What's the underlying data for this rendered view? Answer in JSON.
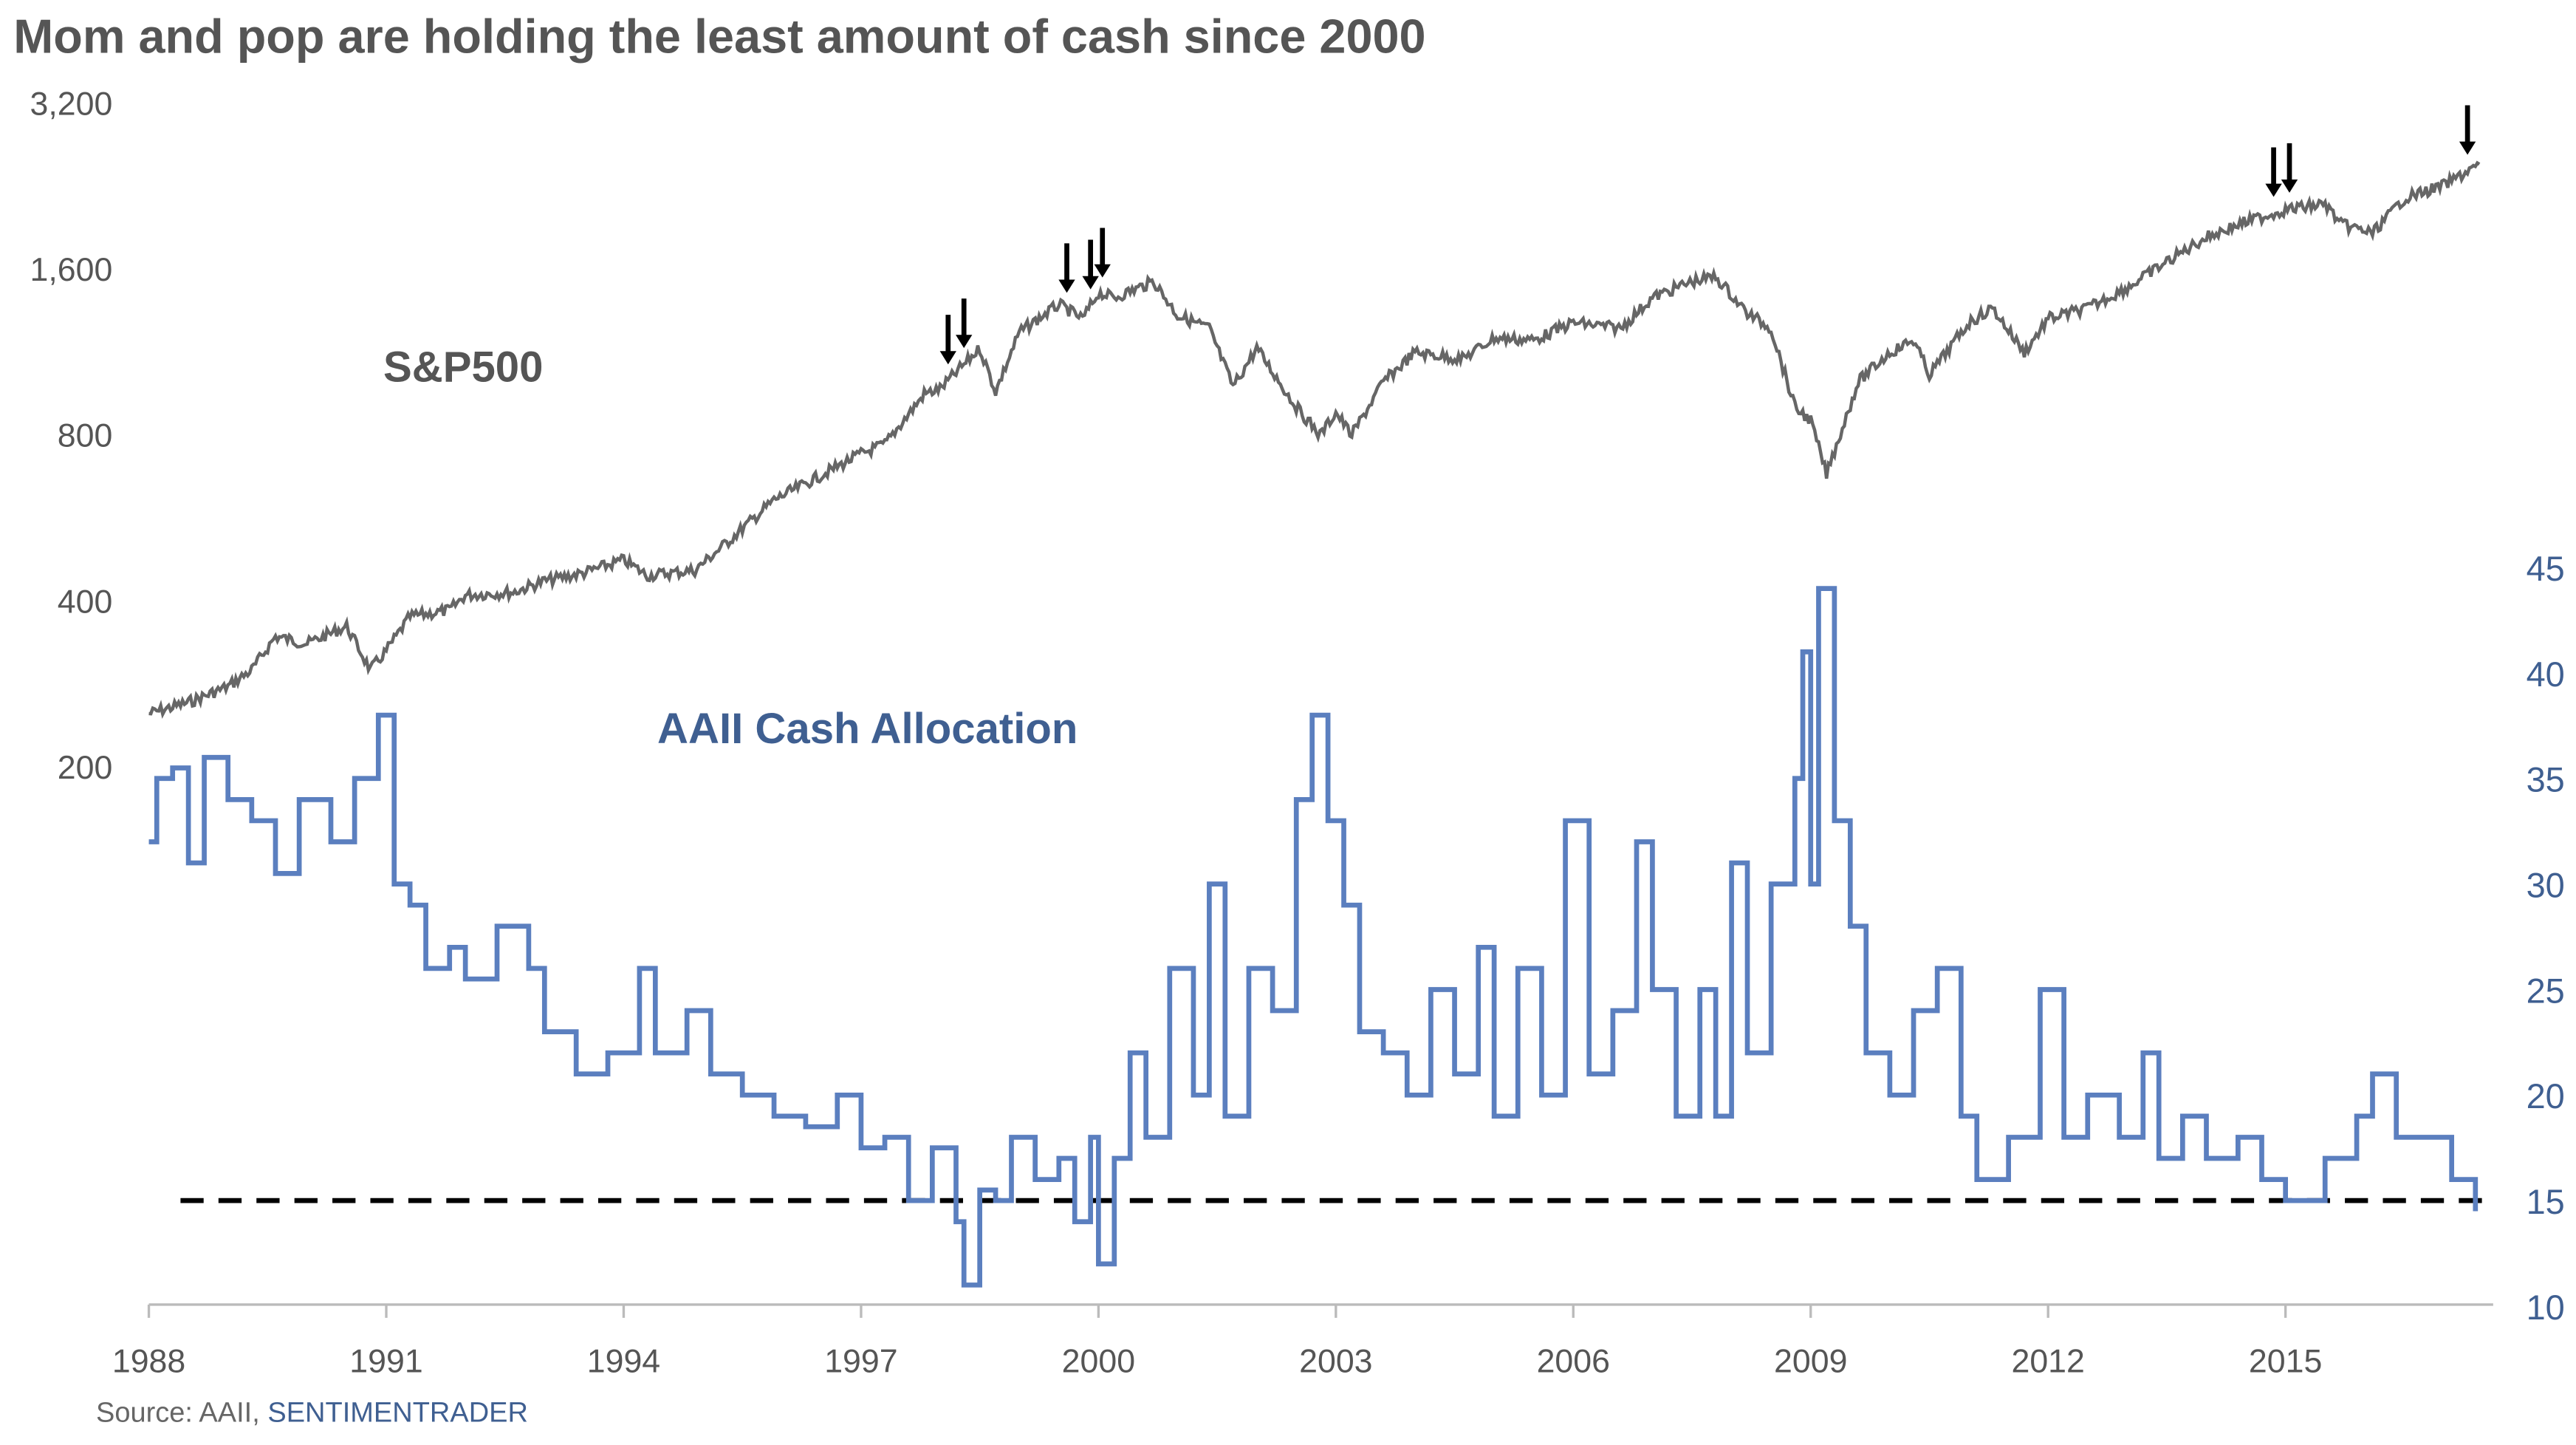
{
  "chart_data": {
    "type": "line",
    "title": "Mom and pop are holding the least amount of cash since 2000",
    "source_prefix": "Source: AAII, ",
    "source_brand": "SENTIMENTRADER",
    "x_range": [
      1988,
      2018
    ],
    "x_ticks": [
      "1988",
      "1991",
      "1994",
      "1997",
      "2000",
      "2003",
      "2006",
      "2009",
      "2012",
      "2015"
    ],
    "left_axis": {
      "scale": "log",
      "range": [
        200,
        3200
      ],
      "ticks": [
        {
          "v": 3200,
          "label": "3,200"
        },
        {
          "v": 1600,
          "label": "1,600"
        },
        {
          "v": 800,
          "label": "800"
        },
        {
          "v": 400,
          "label": "400"
        },
        {
          "v": 200,
          "label": "200"
        }
      ]
    },
    "right_axis": {
      "scale": "linear",
      "range": [
        10,
        45
      ],
      "ticks": [
        {
          "v": 45,
          "label": "45"
        },
        {
          "v": 40,
          "label": "40"
        },
        {
          "v": 35,
          "label": "35"
        },
        {
          "v": 30,
          "label": "30"
        },
        {
          "v": 25,
          "label": "25"
        },
        {
          "v": 20,
          "label": "20"
        },
        {
          "v": 15,
          "label": "15"
        },
        {
          "v": 10,
          "label": "10"
        }
      ]
    },
    "annotations": {
      "sp_label": "S&P500",
      "aaii_label": "AAII Cash Allocation"
    },
    "threshold": {
      "value": 15,
      "from": 1988.4
    },
    "arrow_years": [
      1998.1,
      1998.3,
      1999.6,
      1999.9,
      2000.05,
      2014.85,
      2015.05,
      2017.3
    ],
    "colors": {
      "sp": "#666666",
      "aaii": "#5b7fbf",
      "threshold": "#000000"
    },
    "series": [
      {
        "name": "S&P500",
        "axis": "left",
        "points": [
          [
            1988.0,
            250
          ],
          [
            1988.5,
            262
          ],
          [
            1989.0,
            280
          ],
          [
            1989.3,
            300
          ],
          [
            1989.6,
            345
          ],
          [
            1990.0,
            335
          ],
          [
            1990.5,
            360
          ],
          [
            1990.8,
            300
          ],
          [
            1991.0,
            325
          ],
          [
            1991.3,
            375
          ],
          [
            1991.8,
            385
          ],
          [
            1992.0,
            410
          ],
          [
            1992.6,
            415
          ],
          [
            1993.0,
            435
          ],
          [
            1993.5,
            450
          ],
          [
            1994.0,
            475
          ],
          [
            1994.3,
            445
          ],
          [
            1994.9,
            455
          ],
          [
            1995.3,
            510
          ],
          [
            1995.9,
            610
          ],
          [
            1996.4,
            665
          ],
          [
            1997.0,
            740
          ],
          [
            1997.3,
            770
          ],
          [
            1997.8,
            950
          ],
          [
            1998.0,
            970
          ],
          [
            1998.5,
            1150
          ],
          [
            1998.7,
            960
          ],
          [
            1999.0,
            1230
          ],
          [
            1999.5,
            1380
          ],
          [
            1999.8,
            1300
          ],
          [
            2000.0,
            1450
          ],
          [
            2000.2,
            1420
          ],
          [
            2000.7,
            1520
          ],
          [
            2001.0,
            1320
          ],
          [
            2001.4,
            1250
          ],
          [
            2001.7,
            980
          ],
          [
            2002.0,
            1150
          ],
          [
            2002.5,
            900
          ],
          [
            2002.8,
            800
          ],
          [
            2003.0,
            880
          ],
          [
            2003.2,
            800
          ],
          [
            2003.6,
            1000
          ],
          [
            2004.0,
            1130
          ],
          [
            2004.6,
            1100
          ],
          [
            2005.0,
            1200
          ],
          [
            2005.5,
            1190
          ],
          [
            2006.0,
            1280
          ],
          [
            2006.6,
            1250
          ],
          [
            2007.0,
            1420
          ],
          [
            2007.5,
            1520
          ],
          [
            2007.8,
            1550
          ],
          [
            2008.2,
            1330
          ],
          [
            2008.5,
            1250
          ],
          [
            2008.8,
            900
          ],
          [
            2009.0,
            850
          ],
          [
            2009.2,
            680
          ],
          [
            2009.6,
            1000
          ],
          [
            2010.0,
            1130
          ],
          [
            2010.3,
            1190
          ],
          [
            2010.5,
            1030
          ],
          [
            2011.0,
            1280
          ],
          [
            2011.3,
            1360
          ],
          [
            2011.7,
            1130
          ],
          [
            2012.0,
            1300
          ],
          [
            2012.5,
            1360
          ],
          [
            2013.0,
            1480
          ],
          [
            2013.5,
            1650
          ],
          [
            2014.0,
            1830
          ],
          [
            2014.5,
            1950
          ],
          [
            2015.0,
            2050
          ],
          [
            2015.5,
            2100
          ],
          [
            2015.7,
            1930
          ],
          [
            2016.1,
            1860
          ],
          [
            2016.5,
            2150
          ],
          [
            2017.0,
            2270
          ],
          [
            2017.45,
            2480
          ]
        ]
      },
      {
        "name": "AAII Cash Allocation",
        "axis": "right",
        "points": [
          [
            1988.0,
            32
          ],
          [
            1988.1,
            35
          ],
          [
            1988.3,
            35.5
          ],
          [
            1988.5,
            31
          ],
          [
            1988.7,
            36
          ],
          [
            1989.0,
            34
          ],
          [
            1989.3,
            33
          ],
          [
            1989.6,
            30.5
          ],
          [
            1989.9,
            34
          ],
          [
            1990.3,
            32
          ],
          [
            1990.6,
            35
          ],
          [
            1990.9,
            38
          ],
          [
            1991.1,
            30
          ],
          [
            1991.3,
            29
          ],
          [
            1991.5,
            26
          ],
          [
            1991.8,
            27
          ],
          [
            1992.0,
            25.5
          ],
          [
            1992.4,
            28
          ],
          [
            1992.8,
            26
          ],
          [
            1993.0,
            23
          ],
          [
            1993.4,
            21
          ],
          [
            1993.8,
            22
          ],
          [
            1994.2,
            26
          ],
          [
            1994.4,
            22
          ],
          [
            1994.8,
            24
          ],
          [
            1995.1,
            21
          ],
          [
            1995.5,
            20
          ],
          [
            1995.9,
            19
          ],
          [
            1996.3,
            18.5
          ],
          [
            1996.7,
            20
          ],
          [
            1997.0,
            17.5
          ],
          [
            1997.3,
            18
          ],
          [
            1997.6,
            15
          ],
          [
            1997.9,
            17.5
          ],
          [
            1998.2,
            14
          ],
          [
            1998.3,
            11
          ],
          [
            1998.5,
            15.5
          ],
          [
            1998.7,
            15
          ],
          [
            1998.9,
            18
          ],
          [
            1999.2,
            16
          ],
          [
            1999.5,
            17
          ],
          [
            1999.7,
            14
          ],
          [
            1999.9,
            18
          ],
          [
            2000.0,
            12
          ],
          [
            2000.2,
            17
          ],
          [
            2000.4,
            22
          ],
          [
            2000.6,
            18
          ],
          [
            2000.9,
            26
          ],
          [
            2001.2,
            20
          ],
          [
            2001.4,
            30
          ],
          [
            2001.6,
            19
          ],
          [
            2001.9,
            26
          ],
          [
            2002.2,
            24
          ],
          [
            2002.5,
            34
          ],
          [
            2002.7,
            38
          ],
          [
            2002.9,
            33
          ],
          [
            2003.1,
            29
          ],
          [
            2003.3,
            23
          ],
          [
            2003.6,
            22
          ],
          [
            2003.9,
            20
          ],
          [
            2004.2,
            25
          ],
          [
            2004.5,
            21
          ],
          [
            2004.8,
            27
          ],
          [
            2005.0,
            19
          ],
          [
            2005.3,
            26
          ],
          [
            2005.6,
            20
          ],
          [
            2005.9,
            33
          ],
          [
            2006.2,
            21
          ],
          [
            2006.5,
            24
          ],
          [
            2006.8,
            32
          ],
          [
            2007.0,
            25
          ],
          [
            2007.3,
            19
          ],
          [
            2007.6,
            25
          ],
          [
            2007.8,
            19
          ],
          [
            2008.0,
            31
          ],
          [
            2008.2,
            22
          ],
          [
            2008.5,
            30
          ],
          [
            2008.8,
            35
          ],
          [
            2008.9,
            41
          ],
          [
            2009.0,
            30
          ],
          [
            2009.1,
            44
          ],
          [
            2009.3,
            33
          ],
          [
            2009.5,
            28
          ],
          [
            2009.7,
            22
          ],
          [
            2010.0,
            20
          ],
          [
            2010.3,
            24
          ],
          [
            2010.6,
            26
          ],
          [
            2010.9,
            19
          ],
          [
            2011.1,
            16
          ],
          [
            2011.5,
            18
          ],
          [
            2011.9,
            25
          ],
          [
            2012.2,
            18
          ],
          [
            2012.5,
            20
          ],
          [
            2012.9,
            18
          ],
          [
            2013.2,
            22
          ],
          [
            2013.4,
            17
          ],
          [
            2013.7,
            19
          ],
          [
            2014.0,
            17
          ],
          [
            2014.4,
            18
          ],
          [
            2014.7,
            16
          ],
          [
            2015.0,
            15
          ],
          [
            2015.5,
            17
          ],
          [
            2015.9,
            19
          ],
          [
            2016.1,
            21
          ],
          [
            2016.4,
            18
          ],
          [
            2016.8,
            18
          ],
          [
            2017.1,
            16
          ],
          [
            2017.4,
            14.5
          ]
        ]
      }
    ]
  }
}
